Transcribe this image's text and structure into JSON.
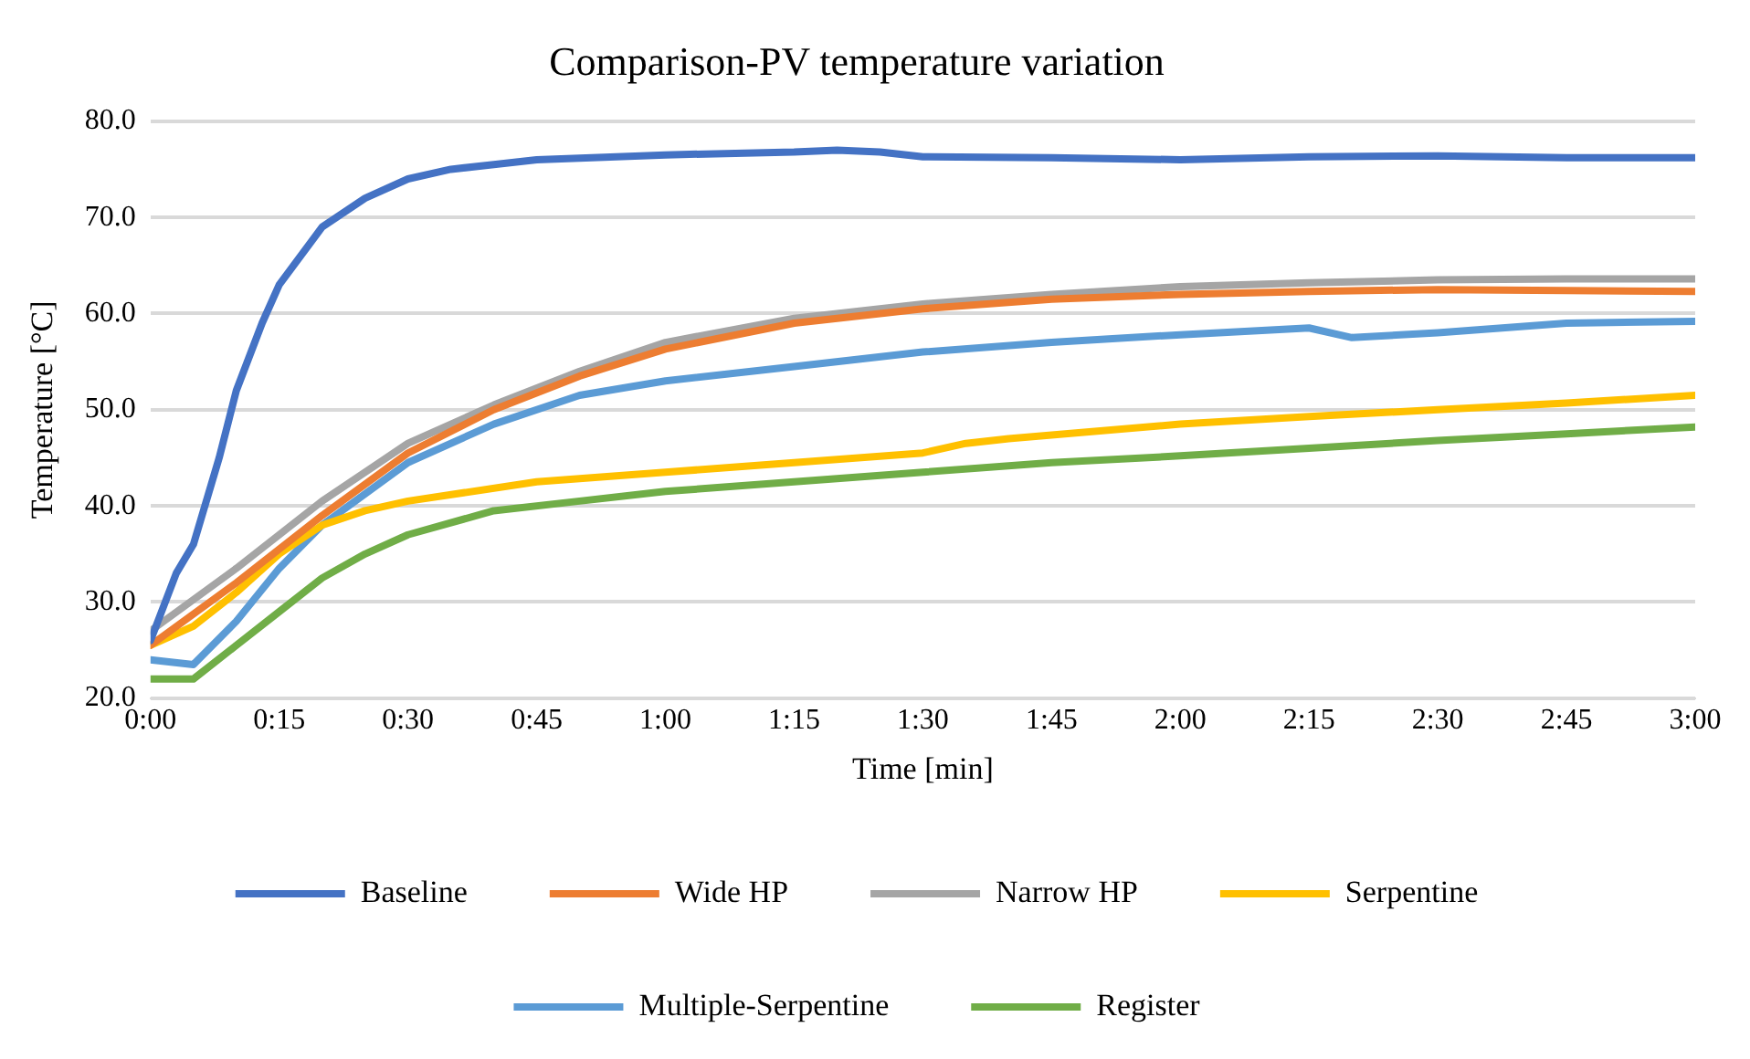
{
  "chart_data": {
    "type": "line",
    "title": "Comparison-PV temperature variation",
    "xlabel": "Time [min]",
    "ylabel": "Temperature [°C]",
    "xlim": [
      0,
      180
    ],
    "xticks": [
      {
        "value": 0,
        "label": "0:00"
      },
      {
        "value": 15,
        "label": "0:15"
      },
      {
        "value": 30,
        "label": "0:30"
      },
      {
        "value": 45,
        "label": "0:45"
      },
      {
        "value": 60,
        "label": "1:00"
      },
      {
        "value": 75,
        "label": "1:15"
      },
      {
        "value": 90,
        "label": "1:30"
      },
      {
        "value": 105,
        "label": "1:45"
      },
      {
        "value": 120,
        "label": "2:00"
      },
      {
        "value": 135,
        "label": "2:15"
      },
      {
        "value": 150,
        "label": "2:30"
      },
      {
        "value": 165,
        "label": "2:45"
      },
      {
        "value": 180,
        "label": "3:00"
      }
    ],
    "ylim": [
      20,
      80
    ],
    "yticks": [
      {
        "value": 20,
        "label": "20.0"
      },
      {
        "value": 30,
        "label": "30.0"
      },
      {
        "value": 40,
        "label": "40.0"
      },
      {
        "value": 50,
        "label": "50.0"
      },
      {
        "value": 60,
        "label": "60.0"
      },
      {
        "value": 70,
        "label": "70.0"
      },
      {
        "value": 80,
        "label": "80.0"
      }
    ],
    "grid": "y",
    "legend": "bottom",
    "marker": "none",
    "line_style": "solid",
    "series": [
      {
        "name": "Baseline",
        "color": "#4472c4",
        "x": [
          0,
          3,
          5,
          8,
          10,
          13,
          15,
          20,
          25,
          30,
          35,
          40,
          45,
          60,
          75,
          80,
          85,
          90,
          105,
          120,
          135,
          150,
          165,
          180
        ],
        "values": [
          26,
          33,
          36,
          45,
          52,
          59,
          63,
          69,
          72,
          74,
          75,
          75.5,
          76,
          76.5,
          76.8,
          77,
          76.8,
          76.3,
          76.2,
          76,
          76.3,
          76.4,
          76.2,
          76.2
        ]
      },
      {
        "name": "Wide HP",
        "color": "#ed7d31",
        "x": [
          0,
          10,
          20,
          30,
          40,
          50,
          60,
          75,
          90,
          105,
          120,
          135,
          150,
          165,
          180
        ],
        "values": [
          25.5,
          32,
          39,
          45.5,
          50,
          53.5,
          56.3,
          59,
          60.5,
          61.5,
          62,
          62.3,
          62.5,
          62.4,
          62.3
        ]
      },
      {
        "name": "Narrow HP",
        "color": "#a5a5a5",
        "x": [
          0,
          10,
          20,
          30,
          40,
          50,
          60,
          75,
          90,
          105,
          120,
          135,
          150,
          165,
          180
        ],
        "values": [
          27,
          33.5,
          40.5,
          46.5,
          50.5,
          54,
          57,
          59.5,
          61,
          62,
          62.8,
          63.2,
          63.5,
          63.6,
          63.6
        ]
      },
      {
        "name": "Serpentine",
        "color": "#ffc000",
        "x": [
          0,
          5,
          10,
          15,
          20,
          25,
          30,
          45,
          60,
          75,
          90,
          95,
          100,
          120,
          135,
          150,
          165,
          180
        ],
        "values": [
          25.5,
          27.5,
          31,
          35,
          38,
          39.5,
          40.5,
          42.5,
          43.5,
          44.5,
          45.5,
          46.5,
          47,
          48.5,
          49.3,
          50,
          50.7,
          51.5
        ]
      },
      {
        "name": "Multiple-Serpentine",
        "color": "#5b9bd5",
        "x": [
          0,
          5,
          10,
          15,
          20,
          30,
          40,
          50,
          60,
          75,
          90,
          105,
          120,
          135,
          140,
          150,
          165,
          180
        ],
        "values": [
          24,
          23.5,
          28,
          33.5,
          38,
          44.5,
          48.5,
          51.5,
          53,
          54.5,
          56,
          57,
          57.8,
          58.5,
          57.5,
          58,
          59,
          59.2
        ]
      },
      {
        "name": "Register",
        "color": "#70ad47",
        "x": [
          0,
          5,
          10,
          15,
          20,
          25,
          30,
          40,
          50,
          60,
          75,
          90,
          105,
          120,
          135,
          150,
          165,
          180
        ],
        "values": [
          22,
          22,
          25.5,
          29,
          32.5,
          35,
          37,
          39.5,
          40.5,
          41.5,
          42.5,
          43.5,
          44.5,
          45.2,
          46,
          46.8,
          47.5,
          48.2
        ]
      }
    ]
  }
}
